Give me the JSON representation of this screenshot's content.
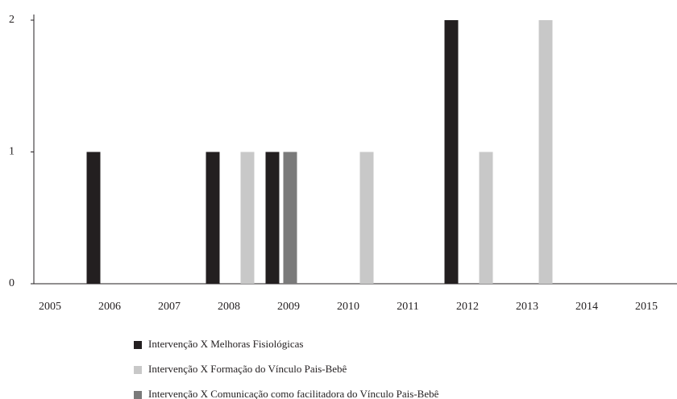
{
  "chart_data": {
    "type": "bar",
    "categories": [
      "2005",
      "2006",
      "2007",
      "2008",
      "2009",
      "2010",
      "2011",
      "2012",
      "2013",
      "2014",
      "2015"
    ],
    "series": [
      {
        "name": "Intervenção X Melhoras Fisiológicas",
        "color": "#231f20",
        "values": [
          0,
          1,
          0,
          1,
          1,
          0,
          0,
          2,
          0,
          0,
          0
        ]
      },
      {
        "name": "Intervenção X Formação do  Vínculo Pais-Bebê",
        "color": "#c8c8c8",
        "values": [
          0,
          0,
          0,
          1,
          0,
          1,
          0,
          1,
          2,
          0,
          0
        ]
      },
      {
        "name": "Intervenção X Comunicação como facilitadora do Vínculo Pais-Bebê",
        "color": "#7a7a7a",
        "values": [
          0,
          0,
          0,
          0,
          1,
          0,
          0,
          0,
          0,
          0,
          0
        ]
      }
    ],
    "ylim": [
      0,
      2
    ],
    "yticks": [
      0,
      1,
      2
    ],
    "grid": false
  }
}
